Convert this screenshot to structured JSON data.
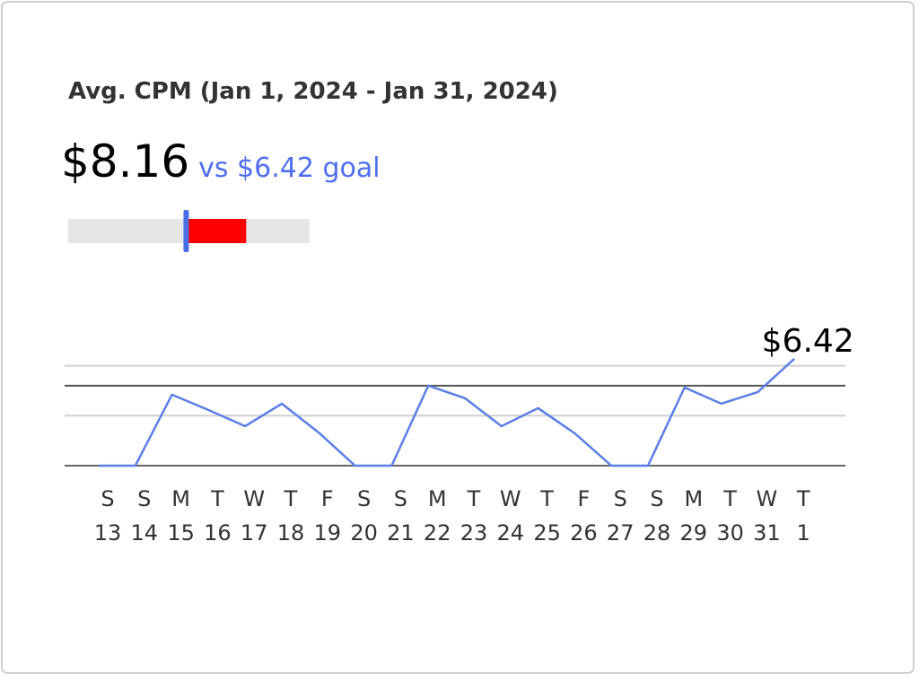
{
  "chart_data": [
    {
      "type": "bullet",
      "title": "Avg. CPM (Jan 1, 2024 - Jan 31, 2024)",
      "values": [
        8.16
      ],
      "value_labels": [
        "$8.16"
      ],
      "goal": 6.42,
      "goal_label": "vs $6.42 goal",
      "xlim": [
        3,
        10
      ],
      "color": "#ff0000",
      "goal_color": "#4a6fe3",
      "track_color": "#e6e6e6",
      "goal_text_color": "#4e6ef2"
    },
    {
      "type": "line",
      "categories": [
        {
          "weekday": "S",
          "day": "13"
        },
        {
          "weekday": "S",
          "day": "14"
        },
        {
          "weekday": "M",
          "day": "15"
        },
        {
          "weekday": "T",
          "day": "16"
        },
        {
          "weekday": "W",
          "day": "17"
        },
        {
          "weekday": "T",
          "day": "18"
        },
        {
          "weekday": "F",
          "day": "19"
        },
        {
          "weekday": "S",
          "day": "20"
        },
        {
          "weekday": "S",
          "day": "21"
        },
        {
          "weekday": "M",
          "day": "22"
        },
        {
          "weekday": "T",
          "day": "23"
        },
        {
          "weekday": "W",
          "day": "24"
        },
        {
          "weekday": "T",
          "day": "25"
        },
        {
          "weekday": "F",
          "day": "26"
        },
        {
          "weekday": "S",
          "day": "27"
        },
        {
          "weekday": "S",
          "day": "28"
        },
        {
          "weekday": "M",
          "day": "29"
        },
        {
          "weekday": "T",
          "day": "30"
        },
        {
          "weekday": "W",
          "day": "31"
        },
        {
          "weekday": "T",
          "day": "1"
        }
      ],
      "values": [
        0,
        0,
        4.26,
        3.34,
        2.37,
        3.72,
        2.0,
        0,
        0,
        4.8,
        4.05,
        2.37,
        3.45,
        1.94,
        0,
        0,
        4.69,
        3.72,
        4.42,
        6.42
      ],
      "value_labels": [
        null,
        null,
        null,
        null,
        null,
        null,
        null,
        null,
        null,
        null,
        null,
        null,
        null,
        null,
        null,
        null,
        null,
        null,
        null,
        "$6.42"
      ],
      "color": "#5b7fe8",
      "ylim": [
        0,
        7
      ],
      "yticks": [
        0,
        3,
        6
      ],
      "grid": true,
      "reference_line": 4.8,
      "reference_color": "#555555"
    }
  ]
}
